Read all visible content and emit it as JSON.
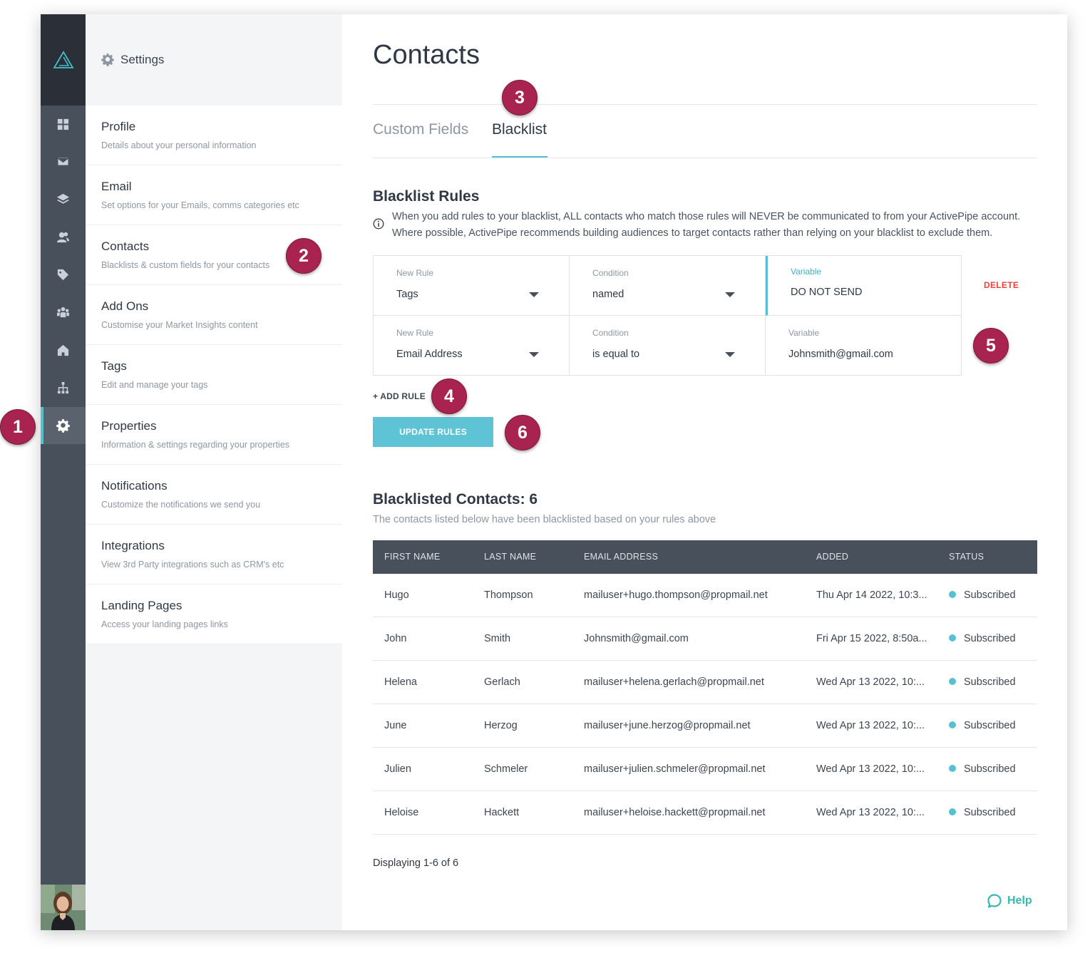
{
  "sidebar": {
    "rail_icons": [
      "dashboard-icon",
      "mail-icon",
      "layers-icon",
      "contacts-icon",
      "tag-icon",
      "team-icon",
      "home-icon",
      "sitemap-icon",
      "gear-icon"
    ],
    "header": "Settings",
    "items": [
      {
        "title": "Profile",
        "desc": "Details about your personal information"
      },
      {
        "title": "Email",
        "desc": "Set options for your Emails, comms categories etc"
      },
      {
        "title": "Contacts",
        "desc": "Blacklists & custom fields for your contacts"
      },
      {
        "title": "Add Ons",
        "desc": "Customise your Market Insights content"
      },
      {
        "title": "Tags",
        "desc": "Edit and manage your tags"
      },
      {
        "title": "Properties",
        "desc": "Information & settings regarding your properties"
      },
      {
        "title": "Notifications",
        "desc": "Customize the notifications we send you"
      },
      {
        "title": "Integrations",
        "desc": "View 3rd Party integrations such as CRM's etc"
      },
      {
        "title": "Landing Pages",
        "desc": "Access your landing pages links"
      }
    ]
  },
  "main": {
    "title": "Contacts",
    "tabs": [
      {
        "label": "Custom Fields"
      },
      {
        "label": "Blacklist"
      }
    ],
    "rules": {
      "title": "Blacklist Rules",
      "info": "When you add rules to your blacklist, ALL contacts who match those rules will NEVER be communicated to from your ActivePipe account. Where possible, ActivePipe recommends building audiences to target contacts rather than relying on your blacklist to exclude them.",
      "rows": [
        {
          "rule_label": "New Rule",
          "rule": "Tags",
          "cond_label": "Condition",
          "cond": "named",
          "var_label": "Variable",
          "var": "DO NOT SEND"
        },
        {
          "rule_label": "New Rule",
          "rule": "Email Address",
          "cond_label": "Condition",
          "cond": "is equal to",
          "var_label": "Variable",
          "var": "Johnsmith@gmail.com"
        }
      ],
      "delete_label": "DELETE",
      "add_rule_label": "+ ADD RULE",
      "update_label": "UPDATE RULES"
    },
    "blacklisted": {
      "title": "Blacklisted Contacts: 6",
      "subtitle": "The contacts listed below have been blacklisted based on your rules above",
      "columns": [
        "FIRST NAME",
        "LAST NAME",
        "EMAIL ADDRESS",
        "ADDED",
        "STATUS"
      ],
      "rows": [
        [
          "Hugo",
          "Thompson",
          "mailuser+hugo.thompson@propmail.net",
          "Thu Apr 14 2022, 10:3...",
          "Subscribed"
        ],
        [
          "John",
          "Smith",
          "Johnsmith@gmail.com",
          "Fri Apr 15 2022, 8:50a...",
          "Subscribed"
        ],
        [
          "Helena",
          "Gerlach",
          "mailuser+helena.gerlach@propmail.net",
          "Wed Apr 13 2022, 10:...",
          "Subscribed"
        ],
        [
          "June",
          "Herzog",
          "mailuser+june.herzog@propmail.net",
          "Wed Apr 13 2022, 10:...",
          "Subscribed"
        ],
        [
          "Julien",
          "Schmeler",
          "mailuser+julien.schmeler@propmail.net",
          "Wed Apr 13 2022, 10:...",
          "Subscribed"
        ],
        [
          "Heloise",
          "Hackett",
          "mailuser+heloise.hackett@propmail.net",
          "Wed Apr 13 2022, 10:...",
          "Subscribed"
        ]
      ],
      "displaying": "Displaying 1-6 of 6"
    },
    "help_label": "Help"
  },
  "callouts": [
    "1",
    "2",
    "3",
    "4",
    "5",
    "6"
  ],
  "colors": {
    "accent": "#57c1d4",
    "rail": "#48505c",
    "delete": "#e8443c",
    "callout": "#a8234f",
    "help": "#35b9b0"
  }
}
